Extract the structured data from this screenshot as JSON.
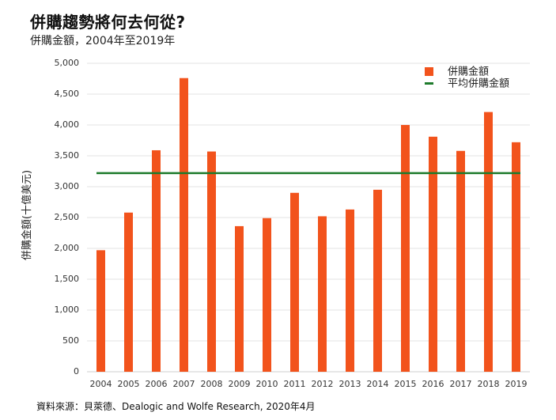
{
  "header": {
    "title": "併購趨勢將何去何從?",
    "subtitle": "併購金額，2004年至2019年"
  },
  "footer": {
    "source": "資料來源：貝萊德、Dealogic and Wolfe Research, 2020年4月"
  },
  "colors": {
    "bar": "#f2531c",
    "average_line": "#1e7b2c",
    "grid": "#e3e3e3"
  },
  "chart_data": {
    "type": "bar",
    "title": "併購趨勢將何去何從?",
    "subtitle": "併購金額，2004年至2019年",
    "xlabel": "",
    "ylabel": "併購金額(十億美元)",
    "ylim": [
      0,
      5000
    ],
    "yticks": [
      0,
      500,
      1000,
      1500,
      2000,
      2500,
      3000,
      3500,
      4000,
      4500,
      5000
    ],
    "ytick_labels": [
      "0",
      "500",
      "1,000",
      "1,500",
      "2,000",
      "2,500",
      "3,000",
      "3,500",
      "4,000",
      "4,500",
      "5,000"
    ],
    "grid": true,
    "legend_position": "top-right",
    "categories": [
      "2004",
      "2005",
      "2006",
      "2007",
      "2008",
      "2009",
      "2010",
      "2011",
      "2012",
      "2013",
      "2014",
      "2015",
      "2016",
      "2017",
      "2018",
      "2019"
    ],
    "series": [
      {
        "name": "併購金額",
        "type": "bar",
        "values": [
          1970,
          2580,
          3590,
          4760,
          3570,
          2360,
          2490,
          2900,
          2520,
          2630,
          2950,
          4000,
          3810,
          3580,
          4210,
          3720
        ]
      },
      {
        "name": "平均併購金額",
        "type": "line",
        "value": 3220
      }
    ]
  }
}
